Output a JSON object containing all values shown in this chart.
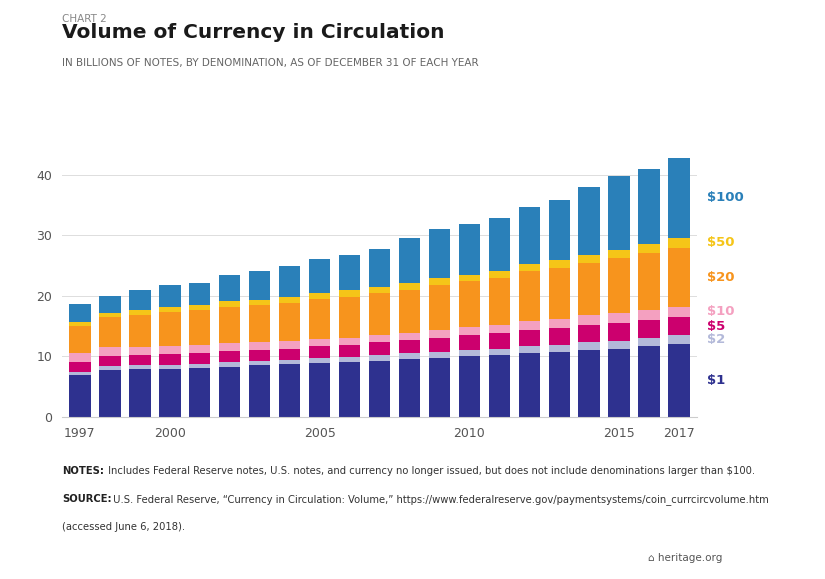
{
  "years": [
    1997,
    1998,
    1999,
    2000,
    2001,
    2002,
    2003,
    2004,
    2005,
    2006,
    2007,
    2008,
    2009,
    2010,
    2011,
    2012,
    2013,
    2014,
    2015,
    2016,
    2017
  ],
  "denominations": [
    "$1",
    "$2",
    "$5",
    "$10",
    "$20",
    "$50",
    "$100"
  ],
  "colors": [
    "#2e318f",
    "#b3b9d9",
    "#cc006e",
    "#f4a0c0",
    "#f7941d",
    "#f5c518",
    "#2a80b9"
  ],
  "denom_label_colors": [
    "#2e318f",
    "#b3b9d9",
    "#cc006e",
    "#f4a0c0",
    "#f7941d",
    "#f5c518",
    "#2a80b9"
  ],
  "data": {
    "$1": [
      7.0,
      7.8,
      7.9,
      8.0,
      8.1,
      8.3,
      8.5,
      8.7,
      8.9,
      9.1,
      9.3,
      9.6,
      9.8,
      10.0,
      10.2,
      10.5,
      10.7,
      11.0,
      11.3,
      11.7,
      12.1
    ],
    "$2": [
      0.5,
      0.6,
      0.6,
      0.6,
      0.6,
      0.7,
      0.7,
      0.7,
      0.8,
      0.8,
      0.9,
      0.9,
      1.0,
      1.1,
      1.1,
      1.2,
      1.2,
      1.3,
      1.3,
      1.4,
      1.4
    ],
    "$5": [
      1.5,
      1.7,
      1.7,
      1.8,
      1.9,
      1.9,
      1.9,
      1.9,
      2.0,
      2.0,
      2.1,
      2.2,
      2.3,
      2.4,
      2.5,
      2.7,
      2.8,
      2.9,
      2.9,
      2.9,
      3.0
    ],
    "$10": [
      1.5,
      1.4,
      1.4,
      1.4,
      1.3,
      1.3,
      1.2,
      1.2,
      1.2,
      1.2,
      1.2,
      1.2,
      1.3,
      1.3,
      1.4,
      1.5,
      1.5,
      1.6,
      1.7,
      1.7,
      1.7
    ],
    "$20": [
      4.5,
      5.0,
      5.3,
      5.6,
      5.8,
      6.0,
      6.2,
      6.4,
      6.6,
      6.8,
      7.0,
      7.1,
      7.4,
      7.6,
      7.8,
      8.2,
      8.5,
      8.7,
      9.0,
      9.4,
      9.8
    ],
    "$50": [
      0.7,
      0.7,
      0.8,
      0.8,
      0.8,
      0.9,
      0.9,
      0.9,
      1.0,
      1.0,
      1.0,
      1.1,
      1.1,
      1.1,
      1.1,
      1.2,
      1.2,
      1.3,
      1.4,
      1.5,
      1.6
    ],
    "$100": [
      3.0,
      2.8,
      3.3,
      3.6,
      3.7,
      4.4,
      4.8,
      5.2,
      5.6,
      5.8,
      6.3,
      7.4,
      8.1,
      8.4,
      8.8,
      9.4,
      10.0,
      11.2,
      12.2,
      12.4,
      13.2
    ]
  },
  "title": "Volume of Currency in Circulation",
  "chart_label": "CHART 2",
  "subtitle": "IN BILLIONS OF NOTES, BY DENOMINATION, AS OF DECEMBER 31 OF EACH YEAR",
  "notes_bold1": "NOTES:",
  "notes_text1": " Includes Federal Reserve notes, U.S. notes, and currency no longer issued, but does not include denominations larger than $100.",
  "notes_bold2": "SOURCE:",
  "notes_text2": " U.S. Federal Reserve, “Currency in Circulation: Volume,” https://www.federalreserve.gov/paymentsystems/coin_currcircvolume.htm",
  "notes_text3": "(accessed June 6, 2018).",
  "ylim": [
    0,
    45
  ],
  "yticks": [
    0,
    10,
    20,
    30,
    40
  ],
  "xtick_years": [
    1997,
    2000,
    2005,
    2010,
    2015,
    2017
  ]
}
